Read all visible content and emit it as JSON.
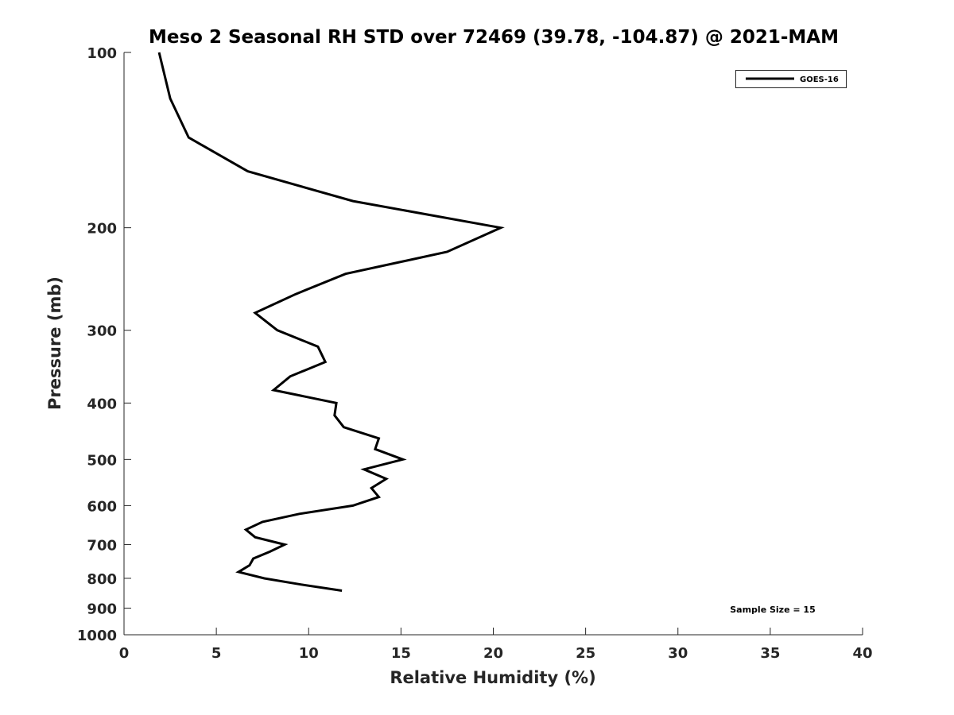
{
  "chart_data": {
    "type": "line",
    "title": "Meso 2 Seasonal RH STD over 72469 (39.78, -104.87) @ 2021-MAM",
    "xlabel": "Relative Humidity (%)",
    "ylabel": "Pressure (mb)",
    "xlim": [
      0,
      40
    ],
    "ylim": [
      100,
      1000
    ],
    "yscale": "log",
    "yreversed": true,
    "grid": false,
    "x_ticks": [
      "0",
      "5",
      "10",
      "15",
      "20",
      "25",
      "30",
      "35",
      "40"
    ],
    "y_ticks": [
      "100",
      "200",
      "300",
      "400",
      "500",
      "600",
      "700",
      "800",
      "900",
      "1000"
    ],
    "legend": {
      "placement": "top-right",
      "entries": [
        "GOES-16"
      ]
    },
    "annotation": "Sample Size = 15",
    "series": [
      {
        "name": "GOES-16",
        "color": "#000000",
        "points": [
          [
            1.9,
            100
          ],
          [
            2.5,
            120
          ],
          [
            3.5,
            140
          ],
          [
            6.7,
            160
          ],
          [
            12.4,
            180
          ],
          [
            20.4,
            200
          ],
          [
            17.5,
            220
          ],
          [
            12.0,
            240
          ],
          [
            9.3,
            260
          ],
          [
            7.1,
            280
          ],
          [
            8.3,
            300
          ],
          [
            10.5,
            320
          ],
          [
            10.9,
            340
          ],
          [
            9.0,
            360
          ],
          [
            8.1,
            380
          ],
          [
            11.5,
            400
          ],
          [
            11.4,
            420
          ],
          [
            11.9,
            440
          ],
          [
            13.8,
            460
          ],
          [
            13.6,
            480
          ],
          [
            15.1,
            500
          ],
          [
            13.0,
            520
          ],
          [
            14.2,
            540
          ],
          [
            13.4,
            560
          ],
          [
            13.8,
            580
          ],
          [
            12.4,
            600
          ],
          [
            9.5,
            620
          ],
          [
            7.5,
            640
          ],
          [
            6.6,
            660
          ],
          [
            7.1,
            680
          ],
          [
            8.7,
            700
          ],
          [
            7.9,
            720
          ],
          [
            7.0,
            740
          ],
          [
            6.8,
            760
          ],
          [
            6.2,
            780
          ],
          [
            7.6,
            800
          ],
          [
            9.6,
            820
          ],
          [
            11.8,
            840
          ]
        ]
      }
    ]
  }
}
